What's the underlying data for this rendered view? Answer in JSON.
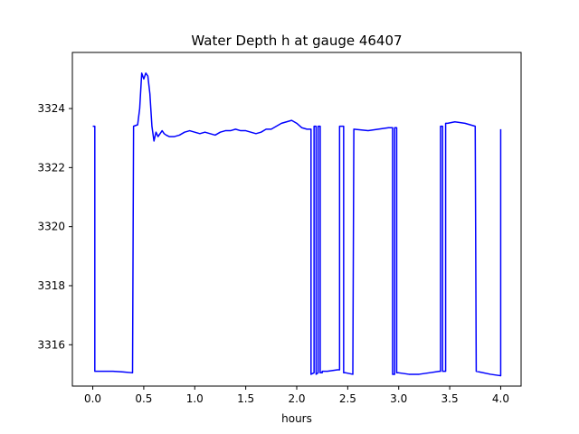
{
  "chart_data": {
    "type": "line",
    "title": "Water Depth h at gauge 46407",
    "xlabel": "hours",
    "ylabel": "",
    "xlim": [
      -0.2,
      4.2
    ],
    "ylim": [
      3314.6,
      3325.9
    ],
    "xticks": [
      0.0,
      0.5,
      1.0,
      1.5,
      2.0,
      2.5,
      3.0,
      3.5,
      4.0
    ],
    "xtick_labels": [
      "0.0",
      "0.5",
      "1.0",
      "1.5",
      "2.0",
      "2.5",
      "3.0",
      "3.5",
      "4.0"
    ],
    "yticks": [
      3316,
      3318,
      3320,
      3322,
      3324
    ],
    "ytick_labels": [
      "3316",
      "3318",
      "3320",
      "3322",
      "3324"
    ],
    "grid": false,
    "series": [
      {
        "name": "",
        "color": "#0000ff",
        "x": [
          0.0,
          0.02,
          0.02,
          0.1,
          0.2,
          0.3,
          0.39,
          0.4,
          0.44,
          0.46,
          0.48,
          0.5,
          0.52,
          0.54,
          0.56,
          0.58,
          0.6,
          0.62,
          0.64,
          0.66,
          0.68,
          0.7,
          0.72,
          0.75,
          0.8,
          0.85,
          0.9,
          0.95,
          1.0,
          1.05,
          1.1,
          1.15,
          1.2,
          1.25,
          1.3,
          1.35,
          1.4,
          1.45,
          1.5,
          1.55,
          1.6,
          1.65,
          1.7,
          1.75,
          1.8,
          1.85,
          1.9,
          1.95,
          2.0,
          2.05,
          2.1,
          2.14,
          2.14,
          2.17,
          2.17,
          2.19,
          2.19,
          2.21,
          2.21,
          2.23,
          2.23,
          2.25,
          2.25,
          2.3,
          2.4,
          2.42,
          2.42,
          2.46,
          2.46,
          2.48,
          2.55,
          2.56,
          2.56,
          2.7,
          2.8,
          2.9,
          2.94,
          2.94,
          2.96,
          2.96,
          2.98,
          2.98,
          3.0,
          3.1,
          3.2,
          3.3,
          3.4,
          3.41,
          3.41,
          3.43,
          3.43,
          3.46,
          3.46,
          3.48,
          3.48,
          3.55,
          3.65,
          3.7,
          3.75,
          3.76,
          3.76,
          3.9,
          4.0,
          4.0
        ],
        "y": [
          3323.4,
          3323.4,
          3315.1,
          3315.1,
          3315.1,
          3315.08,
          3315.05,
          3323.4,
          3323.45,
          3324.0,
          3325.2,
          3325.0,
          3325.2,
          3325.1,
          3324.5,
          3323.4,
          3322.9,
          3323.2,
          3323.05,
          3323.15,
          3323.25,
          3323.15,
          3323.1,
          3323.05,
          3323.05,
          3323.1,
          3323.2,
          3323.25,
          3323.2,
          3323.15,
          3323.2,
          3323.15,
          3323.1,
          3323.2,
          3323.25,
          3323.25,
          3323.3,
          3323.25,
          3323.25,
          3323.2,
          3323.15,
          3323.2,
          3323.3,
          3323.3,
          3323.4,
          3323.5,
          3323.55,
          3323.6,
          3323.5,
          3323.35,
          3323.3,
          3323.3,
          3315.0,
          3315.05,
          3323.4,
          3323.4,
          3315.0,
          3315.05,
          3323.4,
          3323.4,
          3315.05,
          3315.05,
          3315.1,
          3315.1,
          3315.15,
          3315.15,
          3323.4,
          3323.4,
          3315.05,
          3315.05,
          3315.0,
          3323.3,
          3323.3,
          3323.25,
          3323.3,
          3323.35,
          3323.35,
          3315.0,
          3315.0,
          3323.35,
          3323.35,
          3315.05,
          3315.05,
          3315.0,
          3315.0,
          3315.05,
          3315.1,
          3315.1,
          3323.4,
          3323.4,
          3315.1,
          3315.1,
          3323.5,
          3323.5,
          3323.5,
          3323.55,
          3323.5,
          3323.45,
          3323.4,
          3315.15,
          3315.1,
          3315.0,
          3314.95,
          3323.3
        ]
      }
    ]
  }
}
